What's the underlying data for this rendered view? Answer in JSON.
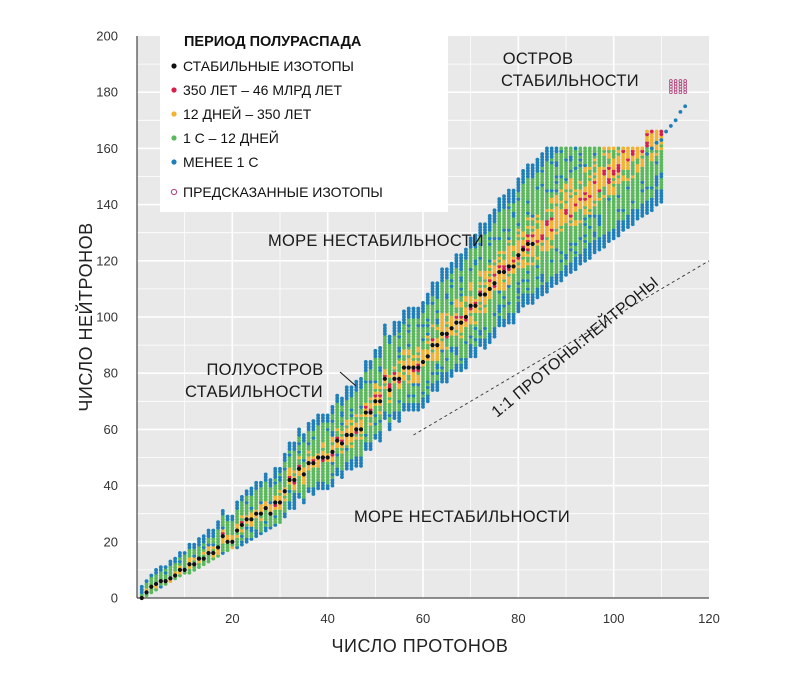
{
  "chart_data": {
    "type": "scatter",
    "title": "",
    "xlabel": "ЧИСЛО ПРОТОНОВ",
    "ylabel": "ЧИСЛО НЕЙТРОНОВ",
    "xlim": [
      0,
      120
    ],
    "ylim": [
      0,
      200
    ],
    "x_ticks": [
      "20",
      "40",
      "60",
      "80",
      "100",
      "120"
    ],
    "y_ticks": [
      "0",
      "20",
      "40",
      "60",
      "80",
      "100",
      "120",
      "140",
      "160",
      "180",
      "200"
    ],
    "grid": true,
    "legend_title": "ПЕРИОД ПОЛУРАСПАДА",
    "legend_position": "top-left",
    "series": [
      {
        "name": "СТАБИЛЬНЫЕ ИЗОТОПЫ",
        "color": "#111111"
      },
      {
        "name": "350 ЛЕТ – 46 МЛРД ЛЕТ",
        "color": "#d6204a"
      },
      {
        "name": "12 ДНЕЙ – 350 ЛЕТ",
        "color": "#f2b233"
      },
      {
        "name": "1 С – 12 ДНЕЙ",
        "color": "#5cb85c"
      },
      {
        "name": "МЕНЕЕ 1 С",
        "color": "#1f7fb8"
      },
      {
        "name": "ПРЕДСКАЗАННЫЕ ИЗОТОПЫ",
        "color": "#b0407a"
      }
    ],
    "stable_isotopes": [
      [
        1,
        0
      ],
      [
        2,
        2
      ],
      [
        3,
        4
      ],
      [
        4,
        5
      ],
      [
        5,
        6
      ],
      [
        6,
        6
      ],
      [
        7,
        7
      ],
      [
        8,
        8
      ],
      [
        9,
        10
      ],
      [
        10,
        10
      ],
      [
        11,
        12
      ],
      [
        12,
        12
      ],
      [
        13,
        14
      ],
      [
        14,
        14
      ],
      [
        15,
        16
      ],
      [
        16,
        16
      ],
      [
        17,
        18
      ],
      [
        18,
        22
      ],
      [
        19,
        20
      ],
      [
        20,
        20
      ],
      [
        21,
        24
      ],
      [
        22,
        26
      ],
      [
        23,
        28
      ],
      [
        24,
        28
      ],
      [
        25,
        30
      ],
      [
        26,
        30
      ],
      [
        27,
        32
      ],
      [
        28,
        30
      ],
      [
        29,
        34
      ],
      [
        30,
        34
      ],
      [
        31,
        38
      ],
      [
        32,
        42
      ],
      [
        33,
        42
      ],
      [
        34,
        46
      ],
      [
        35,
        44
      ],
      [
        36,
        48
      ],
      [
        37,
        48
      ],
      [
        38,
        50
      ],
      [
        39,
        50
      ],
      [
        40,
        50
      ],
      [
        41,
        52
      ],
      [
        42,
        56
      ],
      [
        43,
        55
      ],
      [
        44,
        58
      ],
      [
        45,
        58
      ],
      [
        46,
        60
      ],
      [
        47,
        60
      ],
      [
        48,
        66
      ],
      [
        49,
        66
      ],
      [
        50,
        70
      ],
      [
        51,
        70
      ],
      [
        52,
        78
      ],
      [
        53,
        74
      ],
      [
        54,
        78
      ],
      [
        55,
        78
      ],
      [
        56,
        82
      ],
      [
        57,
        82
      ],
      [
        58,
        82
      ],
      [
        59,
        82
      ],
      [
        60,
        84
      ],
      [
        61,
        86
      ],
      [
        62,
        90
      ],
      [
        63,
        90
      ],
      [
        64,
        94
      ],
      [
        65,
        94
      ],
      [
        66,
        96
      ],
      [
        67,
        98
      ],
      [
        68,
        98
      ],
      [
        69,
        100
      ],
      [
        70,
        104
      ],
      [
        71,
        104
      ],
      [
        72,
        108
      ],
      [
        73,
        108
      ],
      [
        74,
        110
      ],
      [
        75,
        112
      ],
      [
        76,
        116
      ],
      [
        77,
        116
      ],
      [
        78,
        118
      ],
      [
        79,
        118
      ],
      [
        80,
        122
      ],
      [
        81,
        124
      ],
      [
        82,
        126
      ],
      [
        83,
        126
      ]
    ],
    "predicted_isotopes": {
      "z_range": [
        112,
        115
      ],
      "n_range": [
        180,
        184
      ]
    },
    "reference_line": {
      "label": "1:1 ПРОТОНЫ:НЕЙТРОНЫ",
      "from": [
        0,
        0
      ],
      "to": [
        120,
        120
      ]
    },
    "annotations": [
      {
        "lines": [
          "ОСТРОВ",
          "СТАБИЛЬНОСТИ"
        ]
      },
      {
        "lines": [
          "МОРЕ НЕСТАБИЛЬНОСТИ"
        ]
      },
      {
        "lines": [
          "ПОЛУОСТРОВ",
          "СТАБИЛЬНОСТИ"
        ]
      },
      {
        "lines": [
          "МОРЕ НЕСТАБИЛЬНОСТИ"
        ]
      }
    ]
  }
}
